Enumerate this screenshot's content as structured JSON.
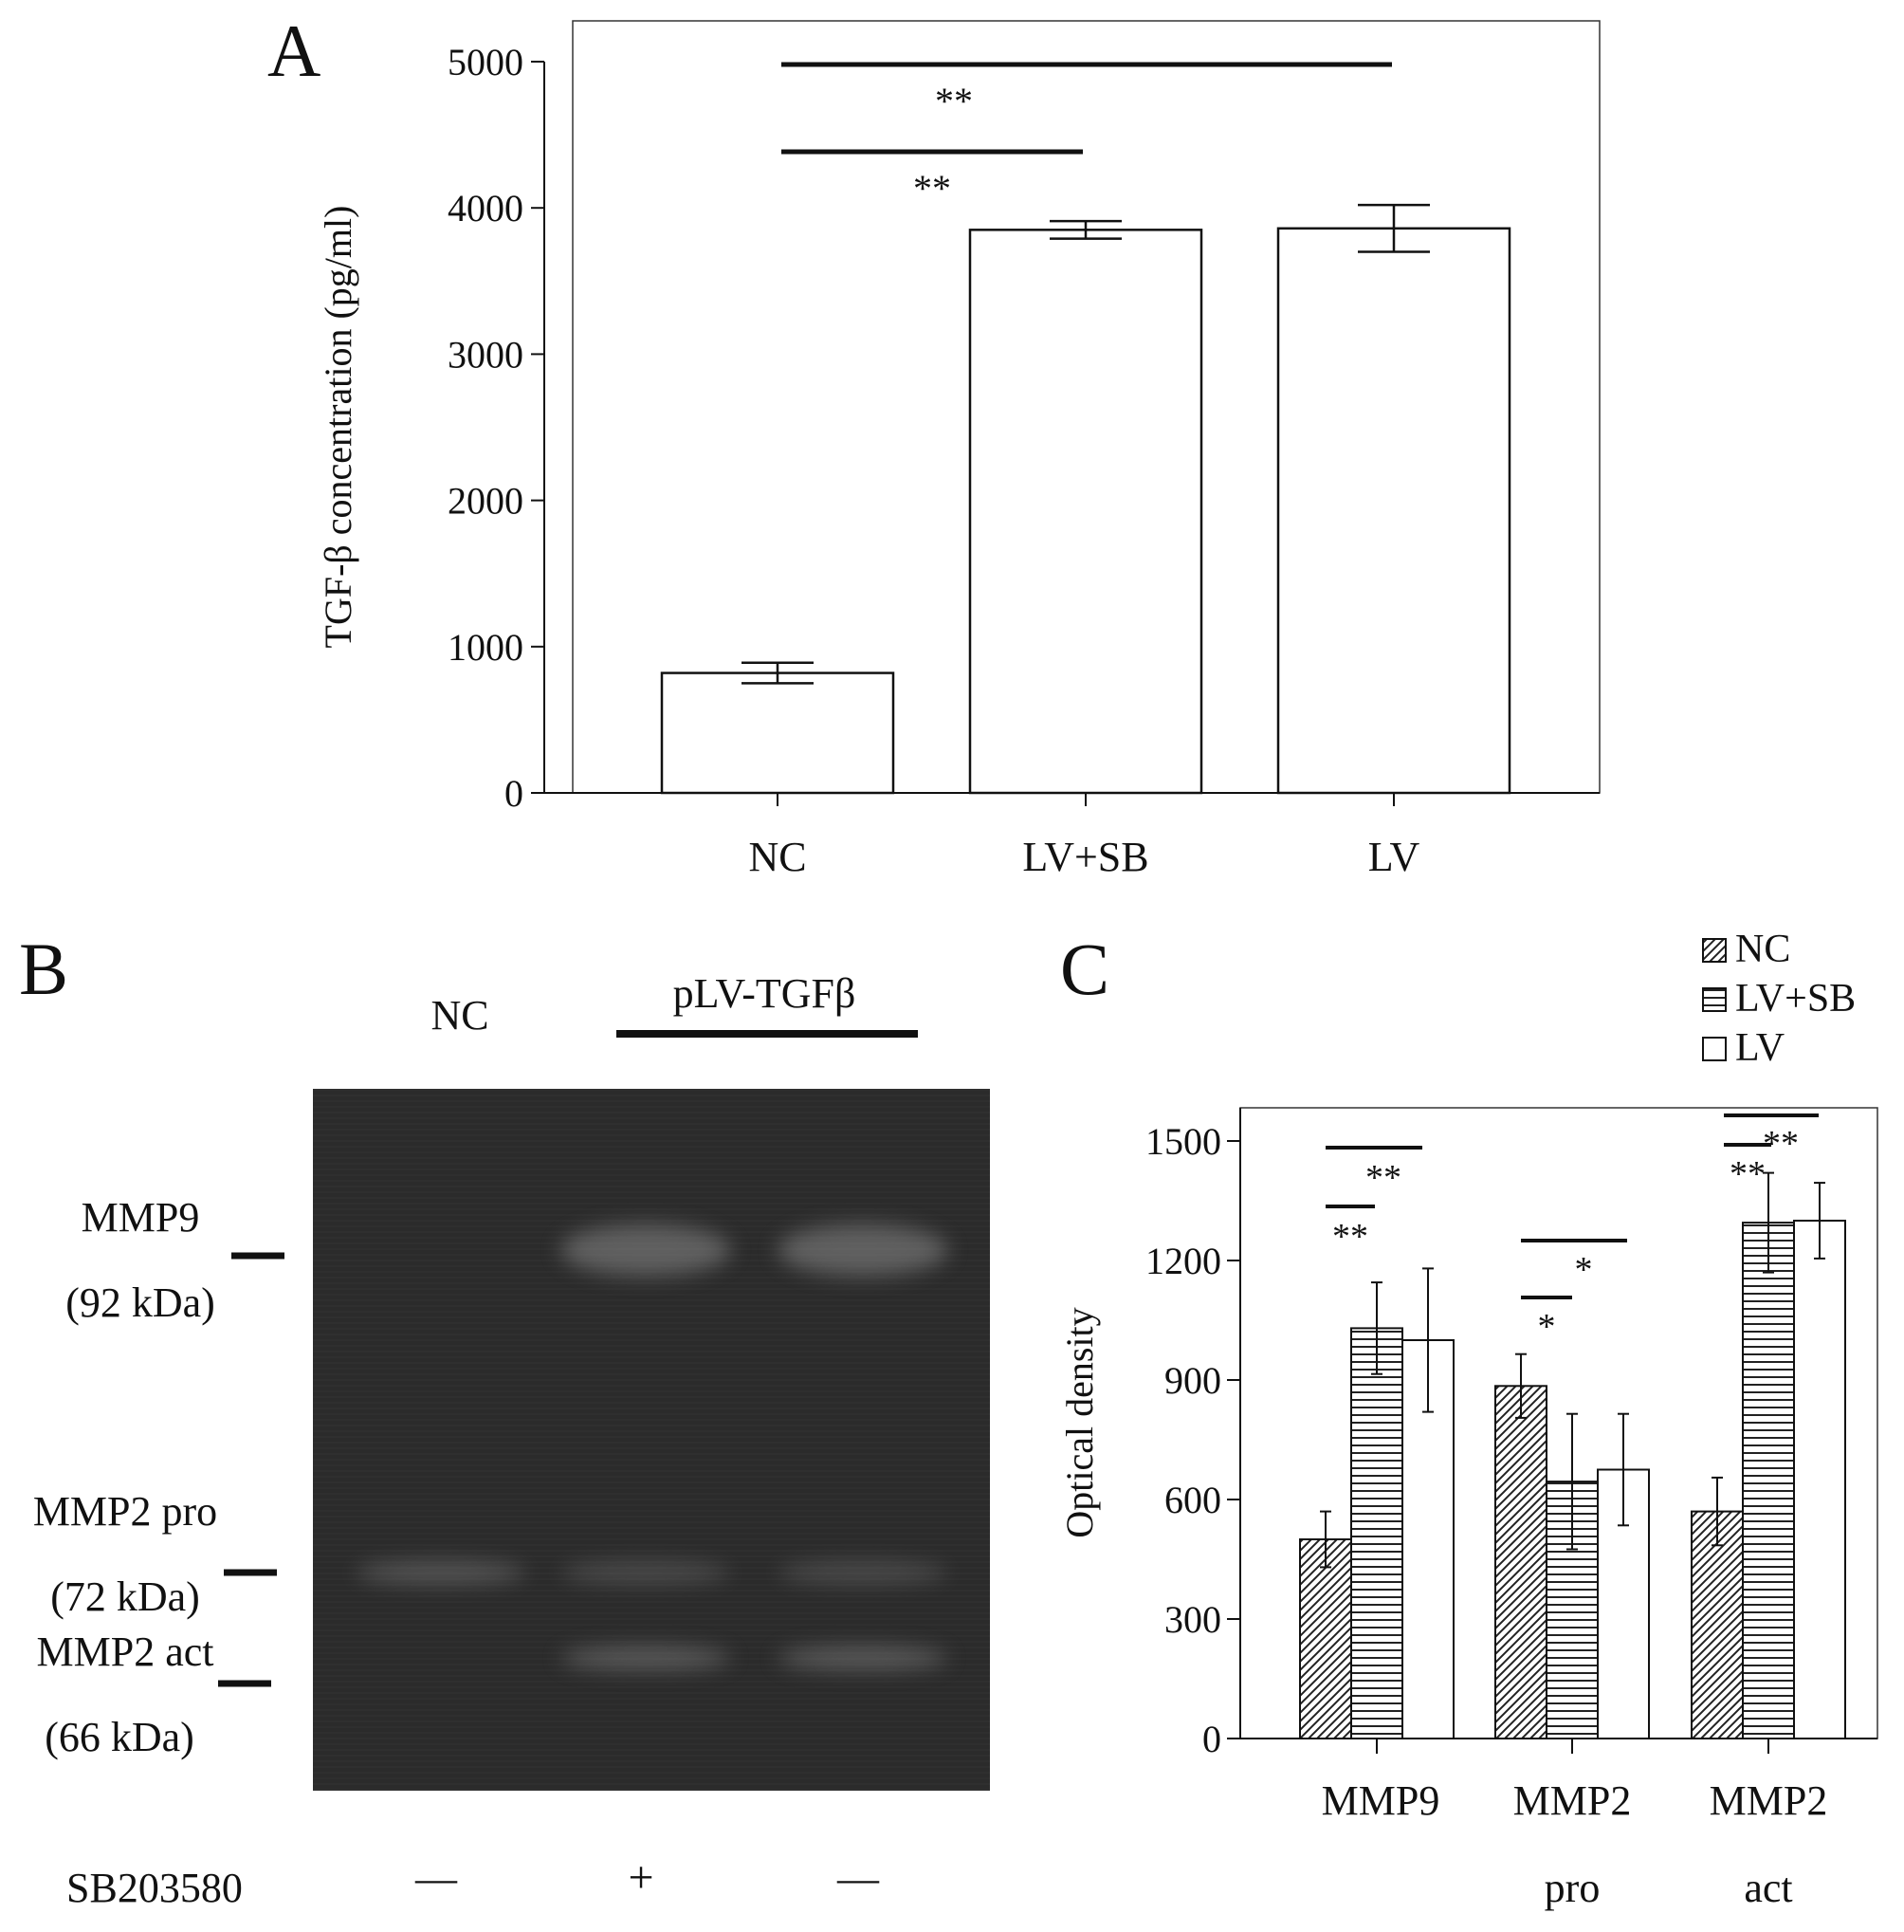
{
  "panels": {
    "A": {
      "letter": "A"
    },
    "B": {
      "letter": "B"
    },
    "C": {
      "letter": "C"
    }
  },
  "chart_data": [
    {
      "panel": "A",
      "type": "bar",
      "ylabel": "TGF-β concentration (pg/ml)",
      "xlabel": "",
      "ylim": [
        0,
        5000
      ],
      "yticks": [
        0,
        1000,
        2000,
        3000,
        4000,
        5000
      ],
      "categories": [
        "NC",
        "LV+SB",
        "LV"
      ],
      "values": [
        820,
        3850,
        3860
      ],
      "errors": [
        70,
        60,
        160
      ],
      "bar_color": "#ffffff",
      "significance": [
        {
          "from": 0,
          "to": 1,
          "label": "**"
        },
        {
          "from": 0,
          "to": 2,
          "label": "**"
        }
      ]
    },
    {
      "panel": "C",
      "type": "bar",
      "ylabel": "Optical density",
      "xlabel": "",
      "ylim": [
        0,
        1500
      ],
      "yticks": [
        0,
        300,
        600,
        900,
        1200,
        1500
      ],
      "categories": [
        "MMP9",
        "MMP2 pro",
        "MMP2 act"
      ],
      "category_lines": [
        [
          "MMP9"
        ],
        [
          "MMP2",
          "pro"
        ],
        [
          "MMP2",
          "act"
        ]
      ],
      "series": [
        {
          "name": "NC",
          "pattern": "diagonal",
          "values": [
            500,
            885,
            570
          ],
          "errors": [
            70,
            80,
            85
          ]
        },
        {
          "name": "LV+SB",
          "pattern": "horizontal",
          "values": [
            1030,
            645,
            1295
          ],
          "errors": [
            115,
            170,
            125
          ]
        },
        {
          "name": "LV",
          "pattern": "open",
          "values": [
            1000,
            675,
            1300
          ],
          "errors": [
            180,
            140,
            95
          ]
        }
      ],
      "legend_position": "top-right",
      "significance": [
        {
          "category": 0,
          "from": 0,
          "to": 1,
          "label": "**"
        },
        {
          "category": 0,
          "from": 0,
          "to": 2,
          "label": "**"
        },
        {
          "category": 1,
          "from": 0,
          "to": 1,
          "label": "*"
        },
        {
          "category": 1,
          "from": 0,
          "to": 2,
          "label": "*"
        },
        {
          "category": 2,
          "from": 0,
          "to": 1,
          "label": "**"
        },
        {
          "category": 2,
          "from": 0,
          "to": 2,
          "label": "**"
        }
      ]
    }
  ],
  "gel": {
    "lane_header_nc": "NC",
    "lane_header_treatment": "pLV-TGFβ",
    "bands": [
      {
        "name": "MMP9",
        "size": "(92 kDa)"
      },
      {
        "name": "MMP2 pro",
        "size": "(72 kDa)"
      },
      {
        "name": "MMP2 act",
        "size": "(66 kDa)"
      }
    ],
    "inhibitor_label": "SB203580",
    "inhibitor_lanes": [
      "—",
      "+",
      "—"
    ],
    "band_intensity": {
      "MMP9": [
        0.0,
        1.0,
        1.0
      ],
      "MMP2 pro": [
        0.8,
        0.6,
        0.6
      ],
      "MMP2 act": [
        0.0,
        0.9,
        0.9
      ]
    }
  }
}
